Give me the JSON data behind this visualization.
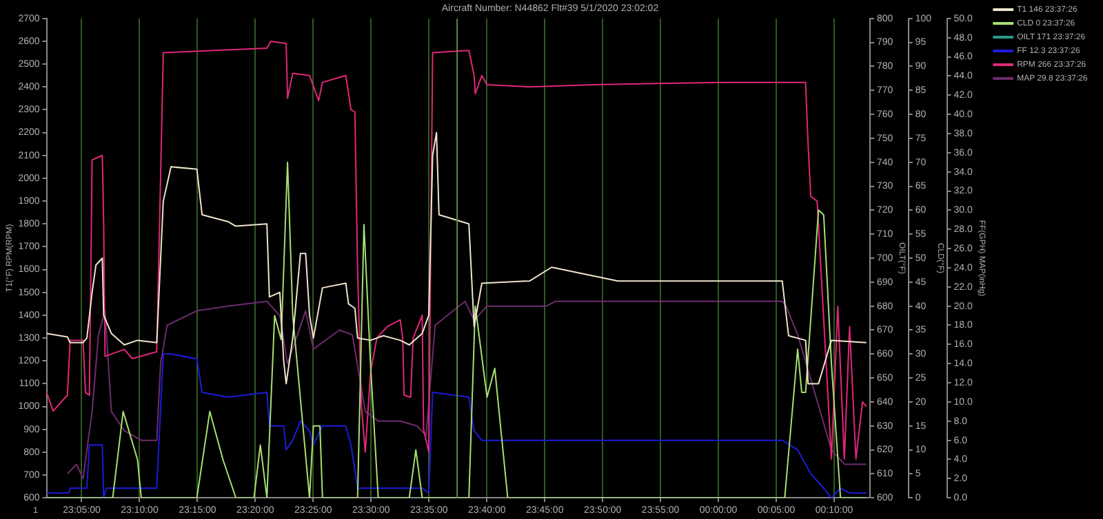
{
  "chart_data": {
    "type": "line",
    "title": "Aircraft Number: N44862 Flt#39 5/1/2020 23:02:02",
    "ylabel": "T1(°F) RPM(RPM)",
    "y2label": "CLD(°F)",
    "y3label": "FF(GPH) MAP(inHg)",
    "annotations": [
      "1",
      "OILT(°F)",
      "600",
      "610",
      "620",
      "630",
      "640",
      "650",
      "660",
      "670",
      "680",
      "690",
      "700",
      "710",
      "720",
      "730",
      "740",
      "750",
      "760",
      "770",
      "780",
      "790",
      "800"
    ],
    "xlim": [
      "2020-05-01T23:01:58",
      "2020-05-02T00:13:06"
    ],
    "xticks": [
      {
        "value": "2020-05-01T23:05",
        "label": "23:05:00"
      },
      {
        "value": "2020-05-01T23:10",
        "label": "23:10:00"
      },
      {
        "value": "2020-05-01T23:15",
        "label": "23:15:00"
      },
      {
        "value": "2020-05-01T23:20",
        "label": "23:20:00"
      },
      {
        "value": "2020-05-01T23:25",
        "label": "23:25:00"
      },
      {
        "value": "2020-05-01T23:30",
        "label": "23:30:00"
      },
      {
        "value": "2020-05-01T23:35",
        "label": "23:35:00"
      },
      {
        "value": "2020-05-01T23:40",
        "label": "23:40:00"
      },
      {
        "value": "2020-05-01T23:45",
        "label": "23:45:00"
      },
      {
        "value": "2020-05-01T23:50",
        "label": "23:50:00"
      },
      {
        "value": "2020-05-01T23:55",
        "label": "23:55:00"
      },
      {
        "value": "2020-05-02T00:00",
        "label": "00:00:00"
      },
      {
        "value": "2020-05-02T00:05",
        "label": "00:05:00"
      },
      {
        "value": "2020-05-02T00:10",
        "label": "00:10:00"
      }
    ],
    "ylim": [
      600,
      2700
    ],
    "yticks": [
      600,
      700,
      800,
      900,
      1000,
      1100,
      1200,
      1300,
      1400,
      1500,
      1600,
      1700,
      1800,
      1900,
      2000,
      2100,
      2200,
      2300,
      2400,
      2500,
      2600,
      2700
    ],
    "y2lim": [
      0,
      100
    ],
    "y2ticks": [
      0,
      5,
      10,
      15,
      20,
      25,
      30,
      35,
      40,
      45,
      50,
      55,
      60,
      65,
      70,
      75,
      80,
      85,
      90,
      95,
      100
    ],
    "y3lim": [
      0,
      50
    ],
    "y3ticks": [
      {
        "value": 0,
        "label": "0.0"
      },
      {
        "value": 2,
        "label": "2.0"
      },
      {
        "value": 4,
        "label": "4.0"
      },
      {
        "value": 6,
        "label": "6.0"
      },
      {
        "value": 8,
        "label": "8.0"
      },
      {
        "value": 10,
        "label": "10.0"
      },
      {
        "value": 12,
        "label": "12.0"
      },
      {
        "value": 14,
        "label": "14.0"
      },
      {
        "value": 16,
        "label": "16.0"
      },
      {
        "value": 18,
        "label": "18.0"
      },
      {
        "value": 20,
        "label": "20.0"
      },
      {
        "value": 22,
        "label": "22.0"
      },
      {
        "value": 24,
        "label": "24.0"
      },
      {
        "value": 26,
        "label": "26.0"
      },
      {
        "value": 28,
        "label": "28.0"
      },
      {
        "value": 30,
        "label": "30.0"
      },
      {
        "value": 32,
        "label": "32.0"
      },
      {
        "value": 34,
        "label": "34.0"
      },
      {
        "value": 36,
        "label": "36.0"
      },
      {
        "value": 38,
        "label": "38.0"
      },
      {
        "value": 40,
        "label": "40.0"
      },
      {
        "value": 42,
        "label": "42.0"
      },
      {
        "value": 44,
        "label": "44.0"
      },
      {
        "value": 46,
        "label": "46.0"
      },
      {
        "value": 48,
        "label": "48.0"
      },
      {
        "value": 50,
        "label": "50.0"
      }
    ],
    "grid": "x",
    "legend": "top right",
    "marker": "none",
    "line_style": "solid",
    "ref_lines": [
      {
        "axis": "x",
        "value": "2020-05-01T23:37:26",
        "color": "#5a8a3a"
      }
    ],
    "series": [
      {
        "name": "T1 146 23:37:26",
        "color": "#f0e4cc",
        "x": [
          "2020-05-01T23:01:59",
          "2020-05-01T23:03:46",
          "2020-05-01T23:04:00",
          "2020-05-01T23:05:07",
          "2020-05-01T23:05:27",
          "2020-05-01T23:05:54",
          "2020-05-01T23:06:14",
          "2020-05-01T23:06:47",
          "2020-05-01T23:06:54",
          "2020-05-01T23:07:34",
          "2020-05-01T23:08:41",
          "2020-05-01T23:09:49",
          "2020-05-01T23:11:29",
          "2020-05-01T23:12:03",
          "2020-05-01T23:12:43",
          "2020-05-01T23:14:57",
          "2020-05-01T23:15:24",
          "2020-05-01T23:17:38",
          "2020-05-01T23:18:19",
          "2020-05-01T23:21:00",
          "2020-05-01T23:21:13",
          "2020-05-01T23:22:07",
          "2020-05-01T23:22:27",
          "2020-05-01T23:22:40",
          "2020-05-01T23:23:14",
          "2020-05-01T23:23:54",
          "2020-05-01T23:24:21",
          "2020-05-01T23:24:41",
          "2020-05-01T23:25:01",
          "2020-05-01T23:25:48",
          "2020-05-01T23:27:49",
          "2020-05-01T23:28:03",
          "2020-05-01T23:28:36",
          "2020-05-01T23:28:50",
          "2020-05-01T23:29:57",
          "2020-05-01T23:31:04",
          "2020-05-01T23:32:31",
          "2020-05-01T23:33:18",
          "2020-05-01T23:34:25",
          "2020-05-01T23:34:59",
          "2020-05-01T23:35:19",
          "2020-05-01T23:35:39",
          "2020-05-01T23:35:52",
          "2020-05-01T23:38:27",
          "2020-05-01T23:38:54",
          "2020-05-01T23:39:34",
          "2020-05-01T23:43:42",
          "2020-05-01T23:45:36",
          "2020-05-01T23:51:19",
          "2020-05-02T00:05:31",
          "2020-05-02T00:06:04",
          "2020-05-02T00:07:32",
          "2020-05-02T00:07:45",
          "2020-05-02T00:08:39",
          "2020-05-02T00:09:46",
          "2020-05-02T00:12:47"
        ],
        "values": [
          1320,
          1305,
          1280,
          1280,
          1300,
          1500,
          1620,
          1650,
          1400,
          1320,
          1270,
          1290,
          1280,
          1900,
          2050,
          2040,
          1840,
          1810,
          1790,
          1800,
          1480,
          1500,
          1200,
          1100,
          1300,
          1670,
          1670,
          1400,
          1300,
          1520,
          1540,
          1450,
          1430,
          1300,
          1290,
          1310,
          1290,
          1270,
          1320,
          1400,
          2100,
          2200,
          1840,
          1800,
          1350,
          1540,
          1550,
          1610,
          1550,
          1550,
          1310,
          1290,
          1100,
          1100,
          1290,
          1280
        ]
      },
      {
        "name": "CLD 0 23:37:26",
        "color": "#a8e070",
        "axis": "y2",
        "x": [
          "2020-05-01T23:01:59",
          "2020-05-01T23:07:41",
          "2020-05-01T23:08:35",
          "2020-05-01T23:09:49",
          "2020-05-01T23:10:09",
          "2020-05-01T23:14:57",
          "2020-05-01T23:16:04",
          "2020-05-01T23:17:12",
          "2020-05-01T23:18:19",
          "2020-05-01T23:19:53",
          "2020-05-01T23:20:26",
          "2020-05-01T23:21:00",
          "2020-05-01T23:21:40",
          "2020-05-01T23:22:14",
          "2020-05-01T23:22:47",
          "2020-05-01T23:23:14",
          "2020-05-01T23:24:41",
          "2020-05-01T23:25:01",
          "2020-05-01T23:25:35",
          "2020-05-01T23:25:48",
          "2020-05-01T23:28:50",
          "2020-05-01T23:29:23",
          "2020-05-01T23:29:57",
          "2020-05-01T23:30:37",
          "2020-05-01T23:33:18",
          "2020-05-01T23:33:52",
          "2020-05-01T23:34:25",
          "2020-05-01T23:38:27",
          "2020-05-01T23:39:00",
          "2020-05-01T23:40:01",
          "2020-05-01T23:40:41",
          "2020-05-01T23:41:48",
          "2020-05-02T00:05:44",
          "2020-05-02T00:06:51",
          "2020-05-02T00:07:12",
          "2020-05-02T00:07:32",
          "2020-05-02T00:08:39",
          "2020-05-02T00:09:06",
          "2020-05-02T00:09:46",
          "2020-05-02T00:10:33",
          "2020-05-02T00:12:47"
        ],
        "values": [
          0,
          0,
          18,
          8,
          0,
          0,
          18,
          8,
          0,
          0,
          11,
          0,
          38,
          33,
          70,
          38,
          0,
          15,
          15,
          0,
          0,
          57,
          28,
          0,
          0,
          10,
          0,
          0,
          40,
          21,
          27,
          0,
          0,
          31,
          22,
          22,
          60,
          59,
          28,
          0,
          0
        ]
      },
      {
        "name": "OILT 171 23:37:26",
        "color": "#2a9a8a"
      },
      {
        "name": "FF 12.3 23:37:26",
        "color": "#1c1cdc",
        "axis": "y3",
        "x": [
          "2020-05-01T23:01:59",
          "2020-05-01T23:03:53",
          "2020-05-01T23:04:00",
          "2020-05-01T23:05:27",
          "2020-05-01T23:05:40",
          "2020-05-01T23:06:47",
          "2020-05-01T23:06:54",
          "2020-05-01T23:07:08",
          "2020-05-01T23:11:29",
          "2020-05-01T23:12:03",
          "2020-05-01T23:12:43",
          "2020-05-01T23:14:57",
          "2020-05-01T23:15:24",
          "2020-05-01T23:17:38",
          "2020-05-01T23:21:00",
          "2020-05-01T23:21:13",
          "2020-05-01T23:22:27",
          "2020-05-01T23:22:40",
          "2020-05-01T23:23:14",
          "2020-05-01T23:23:54",
          "2020-05-01T23:24:41",
          "2020-05-01T23:25:01",
          "2020-05-01T23:25:48",
          "2020-05-01T23:27:49",
          "2020-05-01T23:28:16",
          "2020-05-01T23:28:50",
          "2020-05-01T23:32:31",
          "2020-05-01T23:34:25",
          "2020-05-01T23:34:59",
          "2020-05-01T23:35:19",
          "2020-05-01T23:38:27",
          "2020-05-01T23:38:54",
          "2020-05-01T23:39:34",
          "2020-05-01T23:45:03",
          "2020-05-01T23:45:36",
          "2020-05-02T00:05:31",
          "2020-05-02T00:06:51",
          "2020-05-02T00:07:59",
          "2020-05-02T00:09:06",
          "2020-05-02T00:09:46",
          "2020-05-02T00:10:33",
          "2020-05-02T00:11:20",
          "2020-05-02T00:12:47"
        ],
        "values": [
          0.5,
          0.5,
          1,
          1,
          5.5,
          5.5,
          0,
          1,
          1,
          15,
          15,
          14.5,
          11,
          10.5,
          11,
          7.5,
          7.5,
          5,
          6,
          8,
          7,
          5.5,
          7.5,
          7.5,
          5.5,
          1,
          1,
          1,
          0.5,
          11,
          10.5,
          7,
          6,
          6,
          6,
          6,
          5,
          2.5,
          1,
          0,
          1,
          0.5,
          0.5
        ]
      },
      {
        "name": "RPM 266 23:37:26",
        "color": "#e0287a",
        "x": [
          "2020-05-01T23:01:59",
          "2020-05-01T23:02:32",
          "2020-05-01T23:03:46",
          "2020-05-01T23:04:00",
          "2020-05-01T23:05:07",
          "2020-05-01T23:05:20",
          "2020-05-01T23:05:40",
          "2020-05-01T23:05:54",
          "2020-05-01T23:06:47",
          "2020-05-01T23:06:54",
          "2020-05-01T23:07:01",
          "2020-05-01T23:08:41",
          "2020-05-01T23:09:22",
          "2020-05-01T23:11:29",
          "2020-05-01T23:11:36",
          "2020-05-01T23:12:03",
          "2020-05-01T23:21:00",
          "2020-05-01T23:21:20",
          "2020-05-01T23:22:40",
          "2020-05-01T23:22:47",
          "2020-05-01T23:23:14",
          "2020-05-01T23:24:41",
          "2020-05-01T23:25:28",
          "2020-05-01T23:25:48",
          "2020-05-01T23:27:49",
          "2020-05-01T23:28:16",
          "2020-05-01T23:28:36",
          "2020-05-01T23:28:50",
          "2020-05-01T23:29:10",
          "2020-05-01T23:29:30",
          "2020-05-01T23:29:57",
          "2020-05-01T23:30:30",
          "2020-05-01T23:31:24",
          "2020-05-01T23:32:31",
          "2020-05-01T23:32:44",
          "2020-05-01T23:32:51",
          "2020-05-01T23:33:25",
          "2020-05-01T23:33:38",
          "2020-05-01T23:34:25",
          "2020-05-01T23:34:32",
          "2020-05-01T23:34:59",
          "2020-05-01T23:35:19",
          "2020-05-01T23:38:27",
          "2020-05-01T23:38:54",
          "2020-05-01T23:39:00",
          "2020-05-01T23:39:34",
          "2020-05-01T23:40:01",
          "2020-05-01T23:43:42",
          "2020-05-01T23:49:18",
          "2020-05-01T23:54:53",
          "2020-05-02T00:00:29",
          "2020-05-02T00:07:32",
          "2020-05-02T00:07:45",
          "2020-05-02T00:07:59",
          "2020-05-02T00:08:32",
          "2020-05-02T00:09:46",
          "2020-05-02T00:10:19",
          "2020-05-02T00:10:53",
          "2020-05-02T00:11:20",
          "2020-05-02T00:11:53",
          "2020-05-02T00:12:27",
          "2020-05-02T00:12:47"
        ],
        "values": [
          1060,
          980,
          1050,
          1290,
          1290,
          1060,
          1050,
          2080,
          2100,
          1800,
          1220,
          1250,
          1210,
          1240,
          1500,
          2550,
          2570,
          2600,
          2590,
          2350,
          2460,
          2450,
          2340,
          2420,
          2450,
          2300,
          2290,
          1600,
          1000,
          800,
          1150,
          1300,
          1350,
          1380,
          1300,
          1050,
          1040,
          1300,
          1400,
          900,
          800,
          2550,
          2560,
          2450,
          2370,
          2450,
          2410,
          2400,
          2410,
          2415,
          2420,
          2420,
          2150,
          1920,
          1900,
          770,
          1440,
          770,
          1350,
          770,
          1020,
          1000
        ]
      },
      {
        "name": "MAP 29.8 23:37:26",
        "color": "#6e2c6e",
        "axis": "y3",
        "x": [
          "2020-05-01T23:03:46",
          "2020-05-01T23:04:33",
          "2020-05-01T23:05:07",
          "2020-05-01T23:05:54",
          "2020-05-01T23:06:27",
          "2020-05-01T23:07:01",
          "2020-05-01T23:07:34",
          "2020-05-01T23:08:41",
          "2020-05-01T23:10:09",
          "2020-05-01T23:11:29",
          "2020-05-01T23:11:49",
          "2020-05-01T23:12:23",
          "2020-05-01T23:14:57",
          "2020-05-01T23:17:38",
          "2020-05-01T23:21:00",
          "2020-05-01T23:22:07",
          "2020-05-01T23:22:47",
          "2020-05-01T23:24:21",
          "2020-05-01T23:25:01",
          "2020-05-01T23:27:16",
          "2020-05-01T23:28:23",
          "2020-05-01T23:29:30",
          "2020-05-01T23:30:37",
          "2020-05-01T23:32:31",
          "2020-05-01T23:33:58",
          "2020-05-01T23:34:45",
          "2020-05-01T23:35:32",
          "2020-05-01T23:38:07",
          "2020-05-01T23:38:54",
          "2020-05-01T23:40:01",
          "2020-05-01T23:45:09",
          "2020-05-01T23:45:56",
          "2020-05-01T23:52:05",
          "2020-05-02T00:05:31",
          "2020-05-02T00:05:51",
          "2020-05-02T00:06:51",
          "2020-05-02T00:08:19",
          "2020-05-02T00:09:46",
          "2020-05-02T00:10:53",
          "2020-05-02T00:12:47"
        ],
        "values": [
          2.5,
          3.5,
          2,
          9,
          17,
          19.5,
          9,
          7,
          6,
          6,
          14,
          18,
          19.5,
          20,
          20.5,
          19,
          14,
          19.5,
          15.5,
          17.5,
          17,
          9,
          8,
          8,
          7.5,
          6.5,
          18,
          20.5,
          18.5,
          20,
          20,
          20.5,
          20.5,
          20.5,
          20,
          17,
          11,
          5,
          3.5,
          3.5
        ]
      }
    ]
  }
}
